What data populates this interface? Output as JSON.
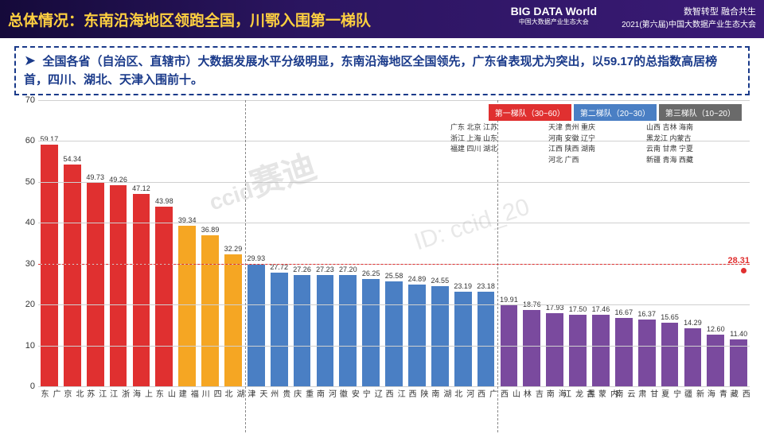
{
  "header": {
    "title": "总体情况：东南沿海地区领跑全国，川鄂入围第一梯队",
    "logo_main": "BIG DATA World",
    "logo_sub": "中国大数据产业生态大会",
    "right_line1": "数智转型  融合共生",
    "right_line2": "2021(第六届)中国大数据产业生态大会"
  },
  "description": "全国各省（自治区、直辖市）大数据发展水平分级明显，东南沿海地区全国领先，广东省表现尤为突出，以59.17的总指数高居榜首，四川、湖北、天津入围前十。",
  "watermark": "赛迪",
  "watermark_prefix": "ccid",
  "chart": {
    "type": "bar",
    "ylim": [
      0,
      70
    ],
    "ytick_step": 10,
    "avg_value": 28.31,
    "dashed_ref": 30,
    "grid_color": "#d0d0d0",
    "background": "#ffffff",
    "tier1_color": "#e03030",
    "tier1_alt_color": "#f5a623",
    "tier2_color": "#4a7fc4",
    "tier3_color": "#7a4a9e",
    "label_fontsize": 10,
    "value_fontsize": 9,
    "bars": [
      {
        "label": "广东",
        "value": 59.17,
        "color": "#e03030"
      },
      {
        "label": "北京",
        "value": 54.34,
        "color": "#e03030"
      },
      {
        "label": "江苏",
        "value": 49.73,
        "color": "#e03030"
      },
      {
        "label": "浙江",
        "value": 49.26,
        "color": "#e03030"
      },
      {
        "label": "上海",
        "value": 47.12,
        "color": "#e03030"
      },
      {
        "label": "山东",
        "value": 43.98,
        "color": "#e03030"
      },
      {
        "label": "福建",
        "value": 39.34,
        "color": "#f5a623"
      },
      {
        "label": "四川",
        "value": 36.89,
        "color": "#f5a623"
      },
      {
        "label": "湖北",
        "value": 32.29,
        "color": "#f5a623"
      },
      {
        "label": "天津",
        "value": 29.93,
        "color": "#4a7fc4"
      },
      {
        "label": "贵州",
        "value": 27.72,
        "color": "#4a7fc4"
      },
      {
        "label": "重庆",
        "value": 27.26,
        "color": "#4a7fc4"
      },
      {
        "label": "河南",
        "value": 27.23,
        "color": "#4a7fc4"
      },
      {
        "label": "安徽",
        "value": 27.2,
        "color": "#4a7fc4"
      },
      {
        "label": "辽宁",
        "value": 26.25,
        "color": "#4a7fc4"
      },
      {
        "label": "江西",
        "value": 25.58,
        "color": "#4a7fc4"
      },
      {
        "label": "陕西",
        "value": 24.89,
        "color": "#4a7fc4"
      },
      {
        "label": "湖南",
        "value": 24.55,
        "color": "#4a7fc4"
      },
      {
        "label": "河北",
        "value": 23.19,
        "color": "#4a7fc4"
      },
      {
        "label": "广西",
        "value": 23.18,
        "color": "#4a7fc4"
      },
      {
        "label": "山西",
        "value": 19.91,
        "color": "#7a4a9e"
      },
      {
        "label": "吉林",
        "value": 18.76,
        "color": "#7a4a9e"
      },
      {
        "label": "海南",
        "value": 17.93,
        "color": "#7a4a9e"
      },
      {
        "label": "黑龙江",
        "value": 17.5,
        "color": "#7a4a9e"
      },
      {
        "label": "内蒙古",
        "value": 17.46,
        "color": "#7a4a9e"
      },
      {
        "label": "云南",
        "value": 16.67,
        "color": "#7a4a9e"
      },
      {
        "label": "甘肃",
        "value": 16.37,
        "color": "#7a4a9e"
      },
      {
        "label": "宁夏",
        "value": 15.65,
        "color": "#7a4a9e"
      },
      {
        "label": "新疆",
        "value": 14.29,
        "color": "#7a4a9e"
      },
      {
        "label": "青海",
        "value": 12.6,
        "color": "#7a4a9e"
      },
      {
        "label": "西藏",
        "value": 11.4,
        "color": "#7a4a9e"
      }
    ],
    "tier_divisions": [
      9,
      20
    ],
    "legend": [
      {
        "label": "第一梯队（30~60）",
        "color": "#e03030",
        "provinces": "广东 北京 江苏\n浙江 上海 山东\n福建 四川 湖北"
      },
      {
        "label": "第二梯队（20~30）",
        "color": "#4a7fc4",
        "provinces": "天津 贵州 重庆\n河南 安徽 辽宁\n江西 陕西 湖南\n河北 广西"
      },
      {
        "label": "第三梯队（10~20）",
        "color": "#6a6a6a",
        "provinces": "山西 吉林 海南\n黑龙江 内蒙古\n云南 甘肃 宁夏\n新疆 青海 西藏"
      }
    ]
  }
}
